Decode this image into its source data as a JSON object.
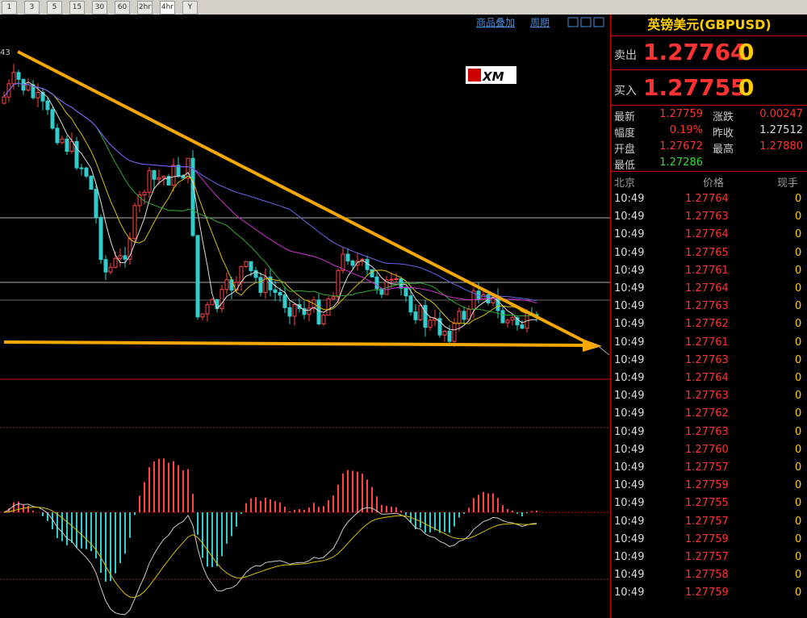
{
  "toolbar": {
    "buttons": [
      "1",
      "3",
      "5",
      "15",
      "30",
      "60",
      "2hr",
      "4hr",
      "Y"
    ]
  },
  "chart": {
    "links": [
      "商品叠加",
      "周期"
    ],
    "marker": "43",
    "logo": "XM"
  },
  "quote": {
    "title": "英镑美元(GBPUSD)",
    "sell": {
      "label": "卖出",
      "price": "1.27764",
      "last": "0"
    },
    "buy": {
      "label": "买入",
      "price": "1.27755",
      "last": "0"
    },
    "stats": [
      [
        "最新",
        "1.27759",
        "涨跌",
        "0.00247"
      ],
      [
        "幅度",
        "0.19%",
        "昨收",
        "1.27512"
      ],
      [
        "开盘",
        "1.27672",
        "最高",
        "1.27880"
      ],
      [
        "最低",
        "1.27286"
      ]
    ],
    "ticks": {
      "header": [
        "北京",
        "价格",
        "现手"
      ],
      "rows": [
        [
          "10:49",
          "1.27764",
          "0"
        ],
        [
          "10:49",
          "1.27763",
          "0"
        ],
        [
          "10:49",
          "1.27764",
          "0"
        ],
        [
          "10:49",
          "1.27765",
          "0"
        ],
        [
          "10:49",
          "1.27761",
          "0"
        ],
        [
          "10:49",
          "1.27764",
          "0"
        ],
        [
          "10:49",
          "1.27763",
          "0"
        ],
        [
          "10:49",
          "1.27762",
          "0"
        ],
        [
          "10:49",
          "1.27761",
          "0"
        ],
        [
          "10:49",
          "1.27763",
          "0"
        ],
        [
          "10:49",
          "1.27764",
          "0"
        ],
        [
          "10:49",
          "1.27763",
          "0"
        ],
        [
          "10:49",
          "1.27762",
          "0"
        ],
        [
          "10:49",
          "1.27763",
          "0"
        ],
        [
          "10:49",
          "1.27760",
          "0"
        ],
        [
          "10:49",
          "1.27757",
          "0"
        ],
        [
          "10:49",
          "1.27759",
          "0"
        ],
        [
          "10:49",
          "1.27755",
          "0"
        ],
        [
          "10:49",
          "1.27757",
          "0"
        ],
        [
          "10:49",
          "1.27759",
          "0"
        ],
        [
          "10:49",
          "1.27757",
          "0"
        ],
        [
          "10:49",
          "1.27758",
          "0"
        ],
        [
          "10:49",
          "1.27759",
          "0"
        ]
      ]
    }
  }
}
